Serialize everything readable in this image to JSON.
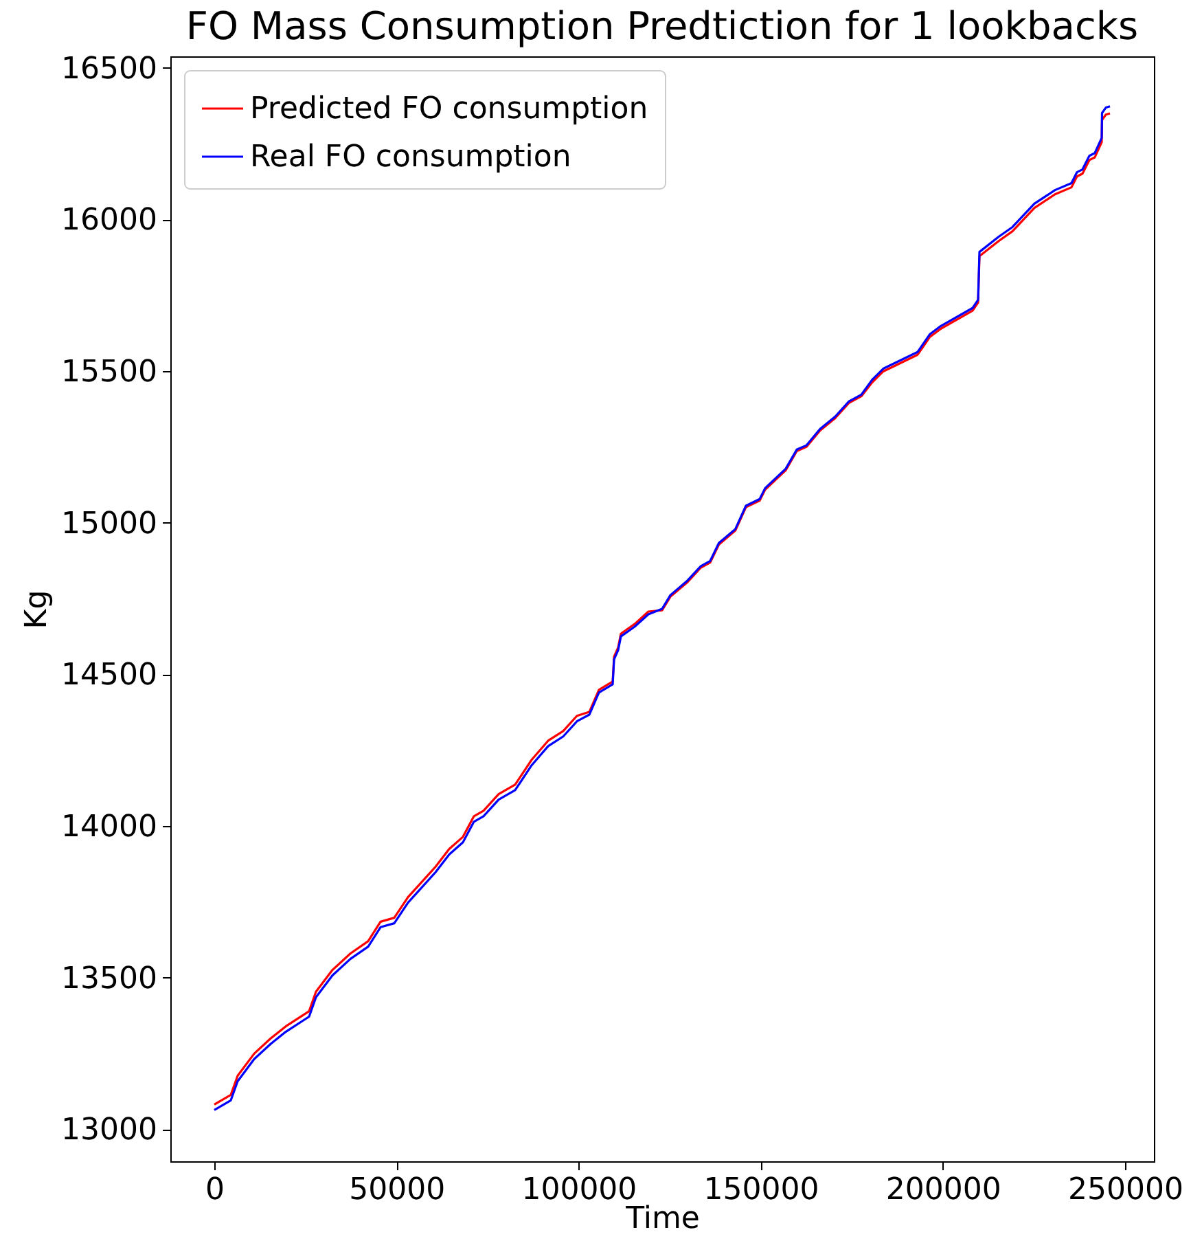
{
  "chart_data": {
    "type": "line",
    "title": "FO Mass Consumption Predtiction for 1 lookbacks",
    "xlabel": "Time",
    "ylabel": "Kg",
    "xlim": [
      -12070,
      257940
    ],
    "ylim": [
      12894,
      16538
    ],
    "xticks": [
      0,
      50000,
      100000,
      150000,
      200000,
      250000
    ],
    "yticks": [
      13000,
      13500,
      14000,
      14500,
      15000,
      15500,
      16000,
      16500
    ],
    "legend": "top left",
    "x": [
      0,
      4530,
      6410,
      10940,
      15460,
      19610,
      26020,
      27910,
      32430,
      37330,
      42240,
      45630,
      49400,
      53170,
      60710,
      64480,
      68260,
      71270,
      73910,
      78060,
      82580,
      87110,
      91640,
      95780,
      99550,
      102950,
      105590,
      109360,
      109740,
      110870,
      111620,
      115390,
      119160,
      122930,
      125200,
      129720,
      133490,
      136130,
      138510,
      143040,
      145940,
      149710,
      151220,
      156870,
      159890,
      162530,
      166300,
      170450,
      174220,
      177610,
      180630,
      183640,
      193070,
      196460,
      199480,
      208160,
      209670,
      210050,
      215330,
      219100,
      225130,
      230790,
      235310,
      236820,
      238330,
      240220,
      241720,
      243610,
      243700,
      244750,
      245880
    ],
    "series": [
      {
        "name": "Predicted FO consumption",
        "color": "#ff0000",
        "values": [
          13081,
          13113,
          13176,
          13249,
          13299,
          13339,
          13389,
          13453,
          13525,
          13579,
          13620,
          13684,
          13697,
          13765,
          13865,
          13924,
          13964,
          14032,
          14050,
          14105,
          14136,
          14218,
          14281,
          14313,
          14363,
          14376,
          14449,
          14476,
          14558,
          14589,
          14634,
          14666,
          14707,
          14711,
          14756,
          14802,
          14851,
          14869,
          14928,
          14974,
          15051,
          15073,
          15109,
          15173,
          15236,
          15250,
          15304,
          15345,
          15395,
          15417,
          15463,
          15499,
          15554,
          15613,
          15640,
          15699,
          15726,
          15879,
          15929,
          15961,
          16038,
          16083,
          16106,
          16142,
          16151,
          16196,
          16205,
          16255,
          16328,
          16346,
          16350
        ]
      },
      {
        "name": "Real FO consumption",
        "color": "#0000ff",
        "values": [
          13063,
          13095,
          13158,
          13231,
          13281,
          13321,
          13371,
          13435,
          13507,
          13561,
          13602,
          13666,
          13679,
          13747,
          13847,
          13906,
          13946,
          14014,
          14032,
          14087,
          14118,
          14200,
          14263,
          14295,
          14345,
          14367,
          14440,
          14467,
          14549,
          14580,
          14625,
          14657,
          14698,
          14716,
          14761,
          14807,
          14856,
          14874,
          14933,
          14979,
          15056,
          15078,
          15114,
          15178,
          15241,
          15255,
          15309,
          15350,
          15400,
          15422,
          15472,
          15508,
          15563,
          15622,
          15649,
          15708,
          15735,
          15893,
          15943,
          15975,
          16052,
          16097,
          16120,
          16156,
          16165,
          16210,
          16219,
          16269,
          16351,
          16369,
          16373
        ]
      }
    ]
  }
}
